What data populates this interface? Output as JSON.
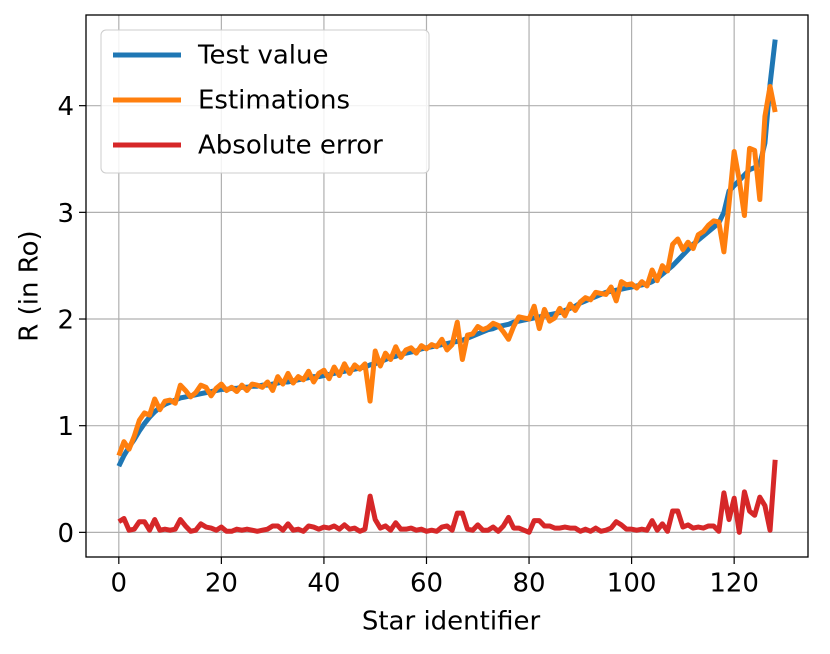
{
  "chart_data": {
    "type": "line",
    "xlabel": "Star identifier",
    "ylabel": "R (in Ro)",
    "x": [
      0,
      1,
      2,
      3,
      4,
      5,
      6,
      7,
      8,
      9,
      10,
      11,
      12,
      13,
      14,
      15,
      16,
      17,
      18,
      19,
      20,
      21,
      22,
      23,
      24,
      25,
      26,
      27,
      28,
      29,
      30,
      31,
      32,
      33,
      34,
      35,
      36,
      37,
      38,
      39,
      40,
      41,
      42,
      43,
      44,
      45,
      46,
      47,
      48,
      49,
      50,
      51,
      52,
      53,
      54,
      55,
      56,
      57,
      58,
      59,
      60,
      61,
      62,
      63,
      64,
      65,
      66,
      67,
      68,
      69,
      70,
      71,
      72,
      73,
      74,
      75,
      76,
      77,
      78,
      79,
      80,
      81,
      82,
      83,
      84,
      85,
      86,
      87,
      88,
      89,
      90,
      91,
      92,
      93,
      94,
      95,
      96,
      97,
      98,
      99,
      100,
      101,
      102,
      103,
      104,
      105,
      106,
      107,
      108,
      109,
      110,
      111,
      112,
      113,
      114,
      115,
      116,
      117,
      118,
      119,
      120,
      121,
      122,
      123,
      124,
      125,
      126,
      127,
      128
    ],
    "series": [
      {
        "name": "Test value",
        "color": "#1f77b4",
        "values": [
          0.62,
          0.72,
          0.8,
          0.87,
          0.95,
          1.02,
          1.08,
          1.13,
          1.17,
          1.2,
          1.22,
          1.24,
          1.26,
          1.27,
          1.28,
          1.29,
          1.3,
          1.31,
          1.32,
          1.33,
          1.34,
          1.34,
          1.35,
          1.35,
          1.36,
          1.36,
          1.37,
          1.37,
          1.38,
          1.38,
          1.39,
          1.4,
          1.41,
          1.41,
          1.42,
          1.43,
          1.44,
          1.45,
          1.46,
          1.46,
          1.47,
          1.48,
          1.49,
          1.5,
          1.51,
          1.52,
          1.53,
          1.54,
          1.55,
          1.57,
          1.58,
          1.6,
          1.62,
          1.64,
          1.65,
          1.67,
          1.68,
          1.69,
          1.7,
          1.72,
          1.73,
          1.74,
          1.75,
          1.76,
          1.77,
          1.78,
          1.79,
          1.8,
          1.82,
          1.84,
          1.86,
          1.88,
          1.9,
          1.91,
          1.93,
          1.94,
          1.95,
          1.97,
          1.98,
          1.99,
          2.0,
          2.01,
          2.02,
          2.03,
          2.04,
          2.05,
          2.06,
          2.08,
          2.1,
          2.12,
          2.15,
          2.17,
          2.19,
          2.21,
          2.23,
          2.25,
          2.26,
          2.27,
          2.28,
          2.29,
          2.3,
          2.31,
          2.32,
          2.33,
          2.35,
          2.38,
          2.42,
          2.46,
          2.5,
          2.55,
          2.6,
          2.65,
          2.7,
          2.74,
          2.78,
          2.82,
          2.86,
          2.9,
          3.0,
          3.2,
          3.25,
          3.3,
          3.35,
          3.4,
          3.42,
          3.45,
          3.65,
          4.2,
          4.62
        ]
      },
      {
        "name": "Estimations",
        "color": "#ff7f0e",
        "values": [
          0.72,
          0.85,
          0.78,
          0.9,
          1.05,
          1.12,
          1.1,
          1.25,
          1.15,
          1.23,
          1.24,
          1.21,
          1.38,
          1.33,
          1.27,
          1.31,
          1.38,
          1.36,
          1.28,
          1.35,
          1.39,
          1.33,
          1.36,
          1.32,
          1.38,
          1.33,
          1.39,
          1.38,
          1.36,
          1.41,
          1.33,
          1.46,
          1.39,
          1.49,
          1.4,
          1.46,
          1.43,
          1.51,
          1.41,
          1.49,
          1.52,
          1.44,
          1.55,
          1.47,
          1.58,
          1.49,
          1.57,
          1.53,
          1.58,
          1.23,
          1.7,
          1.56,
          1.68,
          1.62,
          1.74,
          1.64,
          1.71,
          1.73,
          1.68,
          1.75,
          1.72,
          1.76,
          1.74,
          1.81,
          1.71,
          1.76,
          1.97,
          1.62,
          1.85,
          1.86,
          1.93,
          1.9,
          1.92,
          1.96,
          1.94,
          1.88,
          1.81,
          1.93,
          2.02,
          2.01,
          2.0,
          2.12,
          1.91,
          2.09,
          1.98,
          2.01,
          2.1,
          2.03,
          2.14,
          2.08,
          2.16,
          2.2,
          2.18,
          2.25,
          2.24,
          2.23,
          2.3,
          2.17,
          2.35,
          2.32,
          2.33,
          2.29,
          2.35,
          2.31,
          2.46,
          2.36,
          2.5,
          2.45,
          2.7,
          2.75,
          2.65,
          2.72,
          2.66,
          2.79,
          2.82,
          2.88,
          2.92,
          2.91,
          2.63,
          3.08,
          3.57,
          3.3,
          2.97,
          3.6,
          3.58,
          3.12,
          3.9,
          4.18,
          3.94
        ]
      },
      {
        "name": "Absolute error",
        "color": "#d62728",
        "values": [
          0.1,
          0.13,
          0.02,
          0.03,
          0.1,
          0.1,
          0.02,
          0.12,
          0.02,
          0.03,
          0.02,
          0.03,
          0.12,
          0.06,
          0.01,
          0.02,
          0.08,
          0.05,
          0.04,
          0.02,
          0.05,
          0.01,
          0.01,
          0.03,
          0.02,
          0.03,
          0.02,
          0.01,
          0.02,
          0.03,
          0.06,
          0.06,
          0.02,
          0.08,
          0.02,
          0.03,
          0.01,
          0.06,
          0.05,
          0.03,
          0.05,
          0.04,
          0.06,
          0.03,
          0.07,
          0.03,
          0.04,
          0.01,
          0.03,
          0.34,
          0.12,
          0.04,
          0.06,
          0.02,
          0.09,
          0.03,
          0.03,
          0.04,
          0.02,
          0.03,
          0.01,
          0.02,
          0.01,
          0.05,
          0.06,
          0.02,
          0.18,
          0.18,
          0.03,
          0.02,
          0.07,
          0.02,
          0.02,
          0.05,
          0.01,
          0.06,
          0.14,
          0.04,
          0.04,
          0.02,
          0.0,
          0.11,
          0.11,
          0.06,
          0.06,
          0.04,
          0.04,
          0.05,
          0.04,
          0.04,
          0.01,
          0.03,
          0.01,
          0.04,
          0.01,
          0.02,
          0.04,
          0.1,
          0.07,
          0.03,
          0.03,
          0.02,
          0.03,
          0.02,
          0.11,
          0.02,
          0.08,
          0.01,
          0.2,
          0.2,
          0.05,
          0.07,
          0.04,
          0.05,
          0.04,
          0.06,
          0.06,
          0.01,
          0.37,
          0.12,
          0.32,
          0.0,
          0.38,
          0.2,
          0.16,
          0.33,
          0.25,
          0.02,
          0.68
        ]
      }
    ],
    "xlim": [
      -6.4,
      134.4
    ],
    "xticks": [
      0,
      20,
      40,
      60,
      80,
      100,
      120
    ],
    "ylim": [
      -0.231,
      4.85
    ],
    "yticks": [
      0,
      1,
      2,
      3,
      4
    ],
    "grid": true,
    "legend": "upper left"
  }
}
